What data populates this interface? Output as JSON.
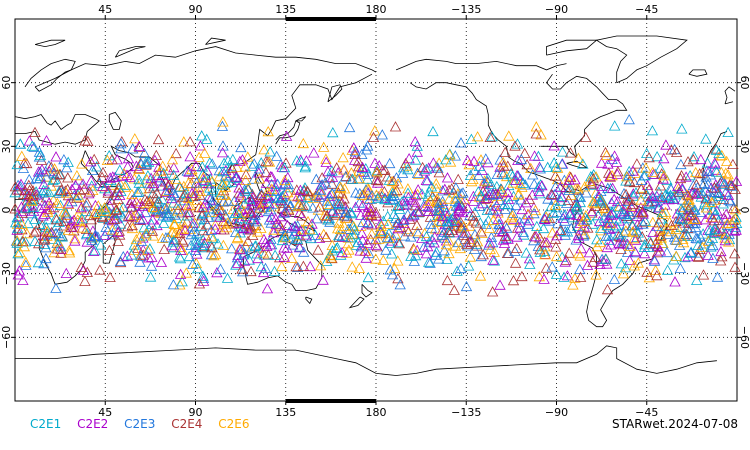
{
  "map": {
    "projection": "cylindrical-equidistant",
    "center_longitude": 180,
    "lon_ticks_labels": [
      "45",
      "90",
      "135",
      "180",
      "−135",
      "−90",
      "−45"
    ],
    "lat_ticks_labels_left": [
      "60",
      "30",
      "0",
      "−30",
      "−60"
    ],
    "lat_ticks_labels_right": [
      "60",
      "30",
      "0",
      "−30",
      "−60"
    ],
    "grid": "dotted",
    "observation_band_lat": [
      -45,
      45
    ]
  },
  "legend": {
    "items": [
      {
        "label": "C2E1",
        "color": "#00aacc"
      },
      {
        "label": "C2E2",
        "color": "#aa00cc"
      },
      {
        "label": "C2E3",
        "color": "#2277dd"
      },
      {
        "label": "C2E4",
        "color": "#aa3333"
      },
      {
        "label": "C2E6",
        "color": "#ffaa00"
      }
    ]
  },
  "stamp": "STARwet.2024-07-08"
}
